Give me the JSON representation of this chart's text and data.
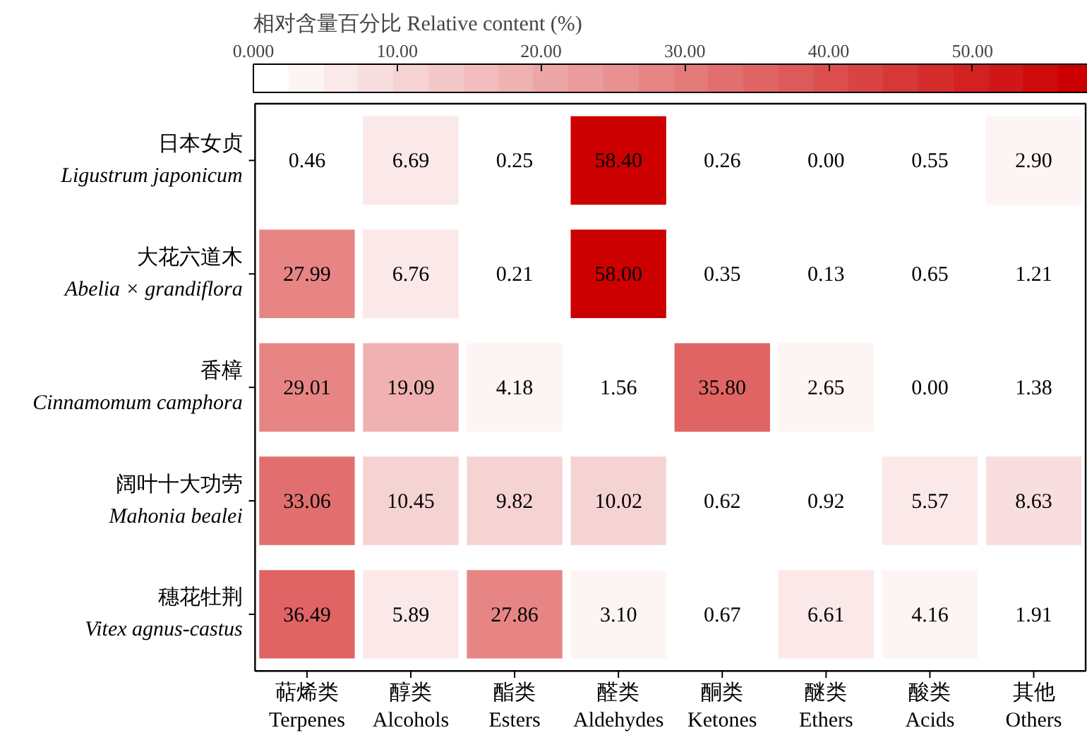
{
  "chart_data": {
    "type": "heatmap",
    "clabel": "相对含量百分比  Relative content (%)",
    "categories": [
      "萜烯类\nTerpenes",
      "醇类\nAlcohols",
      "酯类\nEsters",
      "醛类\nAldehydes",
      "酮类\nKetones",
      "醚类\nEthers",
      "酸类\nAcids",
      "其他\nOthers"
    ],
    "y_categories": [
      "日本女贞\nLigustrum japonicum",
      "大花六道木\nAbelia × grandiflora",
      "香樟\nCinnamomum camphora",
      "阔叶十大功劳\nMahonia bealei",
      "穗花牡荆\nVitex agnus-castus"
    ],
    "cells": [
      [
        0.46,
        6.69,
        0.25,
        58.4,
        0.26,
        0.0,
        0.55,
        2.9
      ],
      [
        27.99,
        6.76,
        0.21,
        58.0,
        0.35,
        0.13,
        0.65,
        1.21
      ],
      [
        29.01,
        19.09,
        4.18,
        1.56,
        35.8,
        2.65,
        0.0,
        1.38
      ],
      [
        33.06,
        10.45,
        9.82,
        10.02,
        0.62,
        0.92,
        5.57,
        8.63
      ],
      [
        36.49,
        5.89,
        27.86,
        3.1,
        0.67,
        6.61,
        4.16,
        1.91
      ]
    ],
    "cell_labels": [
      [
        "0.46",
        "6.69",
        "0.25",
        "58.40",
        "0.26",
        "0.00",
        "0.55",
        "2.90"
      ],
      [
        "27.99",
        "6.76",
        "0.21",
        "58.00",
        "0.35",
        "0.13",
        "0.65",
        "1.21"
      ],
      [
        "29.01",
        "19.09",
        "4.18",
        "1.56",
        "35.80",
        "2.65",
        "0.00",
        "1.38"
      ],
      [
        "33.06",
        "10.45",
        "9.82",
        "10.02",
        "0.62",
        "0.92",
        "5.57",
        "8.63"
      ],
      [
        "36.49",
        "5.89",
        "27.86",
        "3.10",
        "0.67",
        "6.61",
        "4.16",
        "1.91"
      ]
    ],
    "clim": [
      0,
      58.4
    ],
    "cticks": [
      {
        "value": 0,
        "label": "0.000"
      },
      {
        "value": 10,
        "label": "10.00"
      },
      {
        "value": 20,
        "label": "20.00"
      },
      {
        "value": 30,
        "label": "30.00"
      },
      {
        "value": 40,
        "label": "40.00"
      },
      {
        "value": 50,
        "label": "50.00"
      }
    ],
    "colors": [
      "#ffffff",
      "#cc0000"
    ]
  }
}
